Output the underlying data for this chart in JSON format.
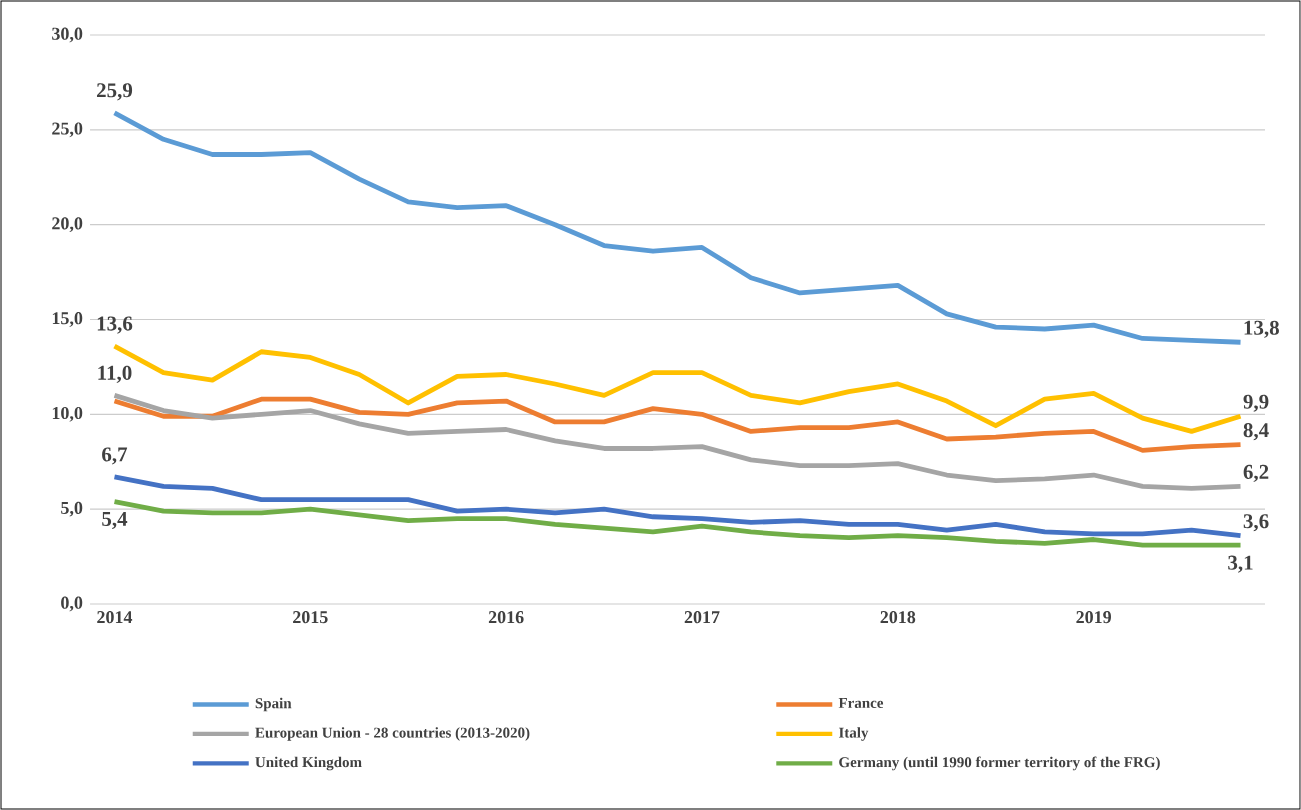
{
  "chart_data": {
    "type": "line",
    "categories": [
      "2014",
      null,
      null,
      null,
      "2015",
      null,
      null,
      null,
      "2016",
      null,
      null,
      null,
      "2017",
      null,
      null,
      null,
      "2018",
      null,
      null,
      null,
      "2019",
      null,
      null,
      null
    ],
    "ylim": [
      0,
      30
    ],
    "yticks": [
      {
        "value": 0,
        "label": "0,0"
      },
      {
        "value": 5,
        "label": "5,0"
      },
      {
        "value": 10,
        "label": "10,0"
      },
      {
        "value": 15,
        "label": "15,0"
      },
      {
        "value": 20,
        "label": "20,0"
      },
      {
        "value": 25,
        "label": "25,0"
      },
      {
        "value": 30,
        "label": "30,0"
      }
    ],
    "grid": "y",
    "legend": "bottom",
    "line_style": "solid",
    "marker": "none",
    "series": [
      {
        "name": "Spain",
        "color": "#5b9bd5",
        "values": [
          25.9,
          24.5,
          23.7,
          23.7,
          23.8,
          22.4,
          21.2,
          20.9,
          21.0,
          20.0,
          18.9,
          18.6,
          18.8,
          17.2,
          16.4,
          16.6,
          16.8,
          15.3,
          14.6,
          14.5,
          14.7,
          14.0,
          13.9,
          13.8
        ],
        "value_labels": [
          "25,9",
          null,
          null,
          null,
          null,
          null,
          null,
          null,
          null,
          null,
          null,
          null,
          null,
          null,
          null,
          null,
          null,
          null,
          null,
          null,
          null,
          null,
          null,
          "13,8"
        ]
      },
      {
        "name": "France",
        "color": "#ed7d31",
        "values": [
          10.7,
          9.9,
          9.9,
          10.8,
          10.8,
          10.1,
          10.0,
          10.6,
          10.7,
          9.6,
          9.6,
          10.3,
          10.0,
          9.1,
          9.3,
          9.3,
          9.6,
          8.7,
          8.8,
          9.0,
          9.1,
          8.1,
          8.3,
          8.4
        ],
        "value_labels": [
          null,
          null,
          null,
          null,
          null,
          null,
          null,
          null,
          null,
          null,
          null,
          null,
          null,
          null,
          null,
          null,
          null,
          null,
          null,
          null,
          null,
          null,
          null,
          "8,4"
        ]
      },
      {
        "name": "European Union - 28 countries (2013-2020)",
        "color": "#a5a5a5",
        "values": [
          11.0,
          10.2,
          9.8,
          10.0,
          10.2,
          9.5,
          9.0,
          9.1,
          9.2,
          8.6,
          8.2,
          8.2,
          8.3,
          7.6,
          7.3,
          7.3,
          7.4,
          6.8,
          6.5,
          6.6,
          6.8,
          6.2,
          6.1,
          6.2
        ],
        "value_labels": [
          "11,0",
          null,
          null,
          null,
          null,
          null,
          null,
          null,
          null,
          null,
          null,
          null,
          null,
          null,
          null,
          null,
          null,
          null,
          null,
          null,
          null,
          null,
          null,
          "6,2"
        ]
      },
      {
        "name": "Italy",
        "color": "#ffc000",
        "values": [
          13.6,
          12.2,
          11.8,
          13.3,
          13.0,
          12.1,
          10.6,
          12.0,
          12.1,
          11.6,
          11.0,
          12.2,
          12.2,
          11.0,
          10.6,
          11.2,
          11.6,
          10.7,
          9.4,
          10.8,
          11.1,
          9.8,
          9.1,
          9.9
        ],
        "value_labels": [
          "13,6",
          null,
          null,
          null,
          null,
          null,
          null,
          null,
          null,
          null,
          null,
          null,
          null,
          null,
          null,
          null,
          null,
          null,
          null,
          null,
          null,
          null,
          null,
          "9,9"
        ]
      },
      {
        "name": "United Kingdom",
        "color": "#4472c4",
        "values": [
          6.7,
          6.2,
          6.1,
          5.5,
          5.5,
          5.5,
          5.5,
          4.9,
          5.0,
          4.8,
          5.0,
          4.6,
          4.5,
          4.3,
          4.4,
          4.2,
          4.2,
          3.9,
          4.2,
          3.8,
          3.7,
          3.7,
          3.9,
          3.6
        ],
        "value_labels": [
          "6,7",
          null,
          null,
          null,
          null,
          null,
          null,
          null,
          null,
          null,
          null,
          null,
          null,
          null,
          null,
          null,
          null,
          null,
          null,
          null,
          null,
          null,
          null,
          "3,6"
        ]
      },
      {
        "name": "Germany (until 1990 former territory of the FRG)",
        "color": "#70ad47",
        "values": [
          5.4,
          4.9,
          4.8,
          4.8,
          5.0,
          4.7,
          4.4,
          4.5,
          4.5,
          4.2,
          4.0,
          3.8,
          4.1,
          3.8,
          3.6,
          3.5,
          3.6,
          3.5,
          3.3,
          3.2,
          3.4,
          3.1,
          3.1,
          3.1
        ],
        "value_labels": [
          "5,4",
          null,
          null,
          null,
          null,
          null,
          null,
          null,
          null,
          null,
          null,
          null,
          null,
          null,
          null,
          null,
          null,
          null,
          null,
          null,
          null,
          null,
          null,
          "3,1"
        ]
      }
    ]
  }
}
